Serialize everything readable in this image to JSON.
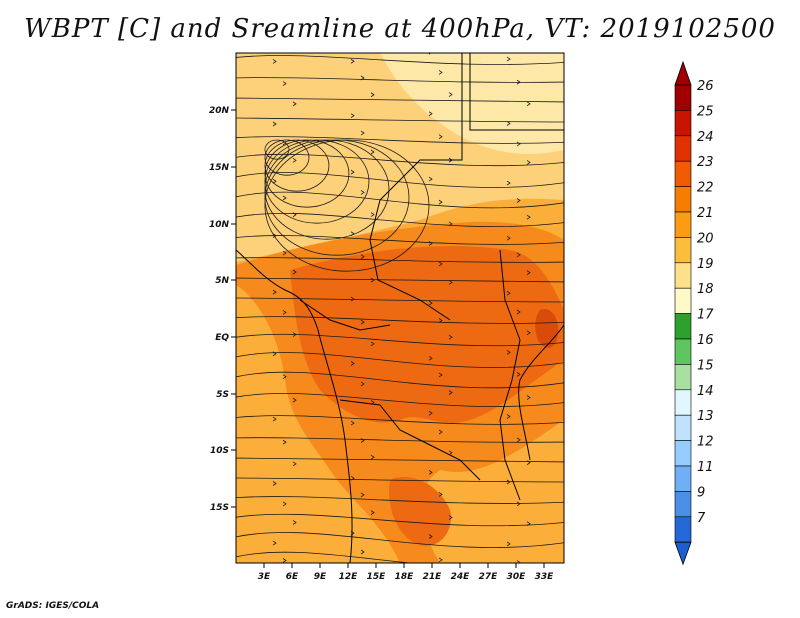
{
  "title": "WBPT [C] and Sreamline at 400hPa, VT: 2019102500",
  "footer": "GrADS: IGES/COLA",
  "lat_ticks": [
    "20N",
    "15N",
    "10N",
    "5N",
    "EQ",
    "5S",
    "10S",
    "15S"
  ],
  "lon_ticks": [
    "3E",
    "6E",
    "9E",
    "12E",
    "15E",
    "18E",
    "21E",
    "24E",
    "27E",
    "30E",
    "33E"
  ],
  "colorbar": {
    "labels": [
      "26",
      "25",
      "24",
      "23",
      "22",
      "21",
      "20",
      "19",
      "18",
      "17",
      "16",
      "15",
      "14",
      "13",
      "12",
      "11",
      "9",
      "7"
    ],
    "colors": [
      "#a00000",
      "#c81400",
      "#e03200",
      "#f05a00",
      "#f77d00",
      "#fa9c14",
      "#fbbd3c",
      "#fee08a",
      "#fff8c8",
      "#2da12d",
      "#5fc55f",
      "#a8e0a0",
      "#e2f6ff",
      "#bfe3ff",
      "#96ccff",
      "#6eaff6",
      "#4a8ee8",
      "#2467d6"
    ],
    "top_arrow_color": "#a00000",
    "bottom_arrow_color": "#1e5fd0"
  },
  "map": {
    "frame_color": "#000000",
    "field_colors": {
      "hot": "#ee6a12",
      "warm": "#f78a1c",
      "mild": "#fbae3a",
      "cool": "#fdd07a",
      "pale": "#fde8a8",
      "red_core": "#d84b0a"
    },
    "streamline_color": "#1a1a1a"
  }
}
